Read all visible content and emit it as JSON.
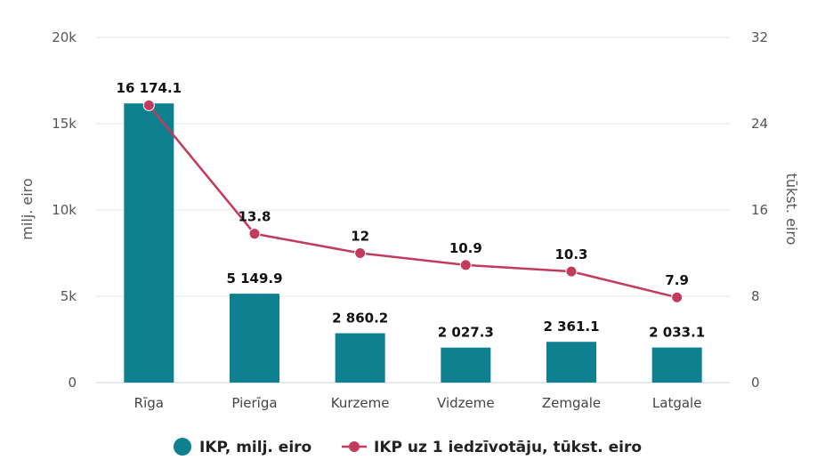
{
  "chart_data": {
    "type": "bar",
    "categories": [
      "Rīga",
      "Pierīga",
      "Kurzeme",
      "Vidzeme",
      "Zemgale",
      "Latgale"
    ],
    "series": [
      {
        "name": "IKP, milj. eiro",
        "type": "bar",
        "axis": "left",
        "color": "#0e8090",
        "values": [
          16174.1,
          5149.9,
          2860.2,
          2027.3,
          2361.1,
          2033.1
        ],
        "labels": [
          "16 174.1",
          "5 149.9",
          "2 860.2",
          "2 027.3",
          "2 361.1",
          "2 033.1"
        ]
      },
      {
        "name": "IKP uz 1 iedzīvotāju, tūkst. eiro",
        "type": "line",
        "axis": "right",
        "color": "#c23b5c",
        "values": [
          25.7,
          13.8,
          12,
          10.9,
          10.3,
          7.9
        ],
        "labels": [
          "",
          "13.8",
          "12",
          "10.9",
          "10.3",
          "7.9"
        ]
      }
    ],
    "y_left": {
      "label": "milj. eiro",
      "range": [
        0,
        20000
      ],
      "ticks": [
        0,
        5000,
        10000,
        15000,
        20000
      ],
      "tick_labels": [
        "0",
        "5k",
        "10k",
        "15k",
        "20k"
      ]
    },
    "y_right": {
      "label": "tūkst. eiro",
      "range": [
        0,
        32
      ],
      "ticks": [
        0,
        8,
        16,
        24,
        32
      ],
      "tick_labels": [
        "0",
        "8",
        "16",
        "24",
        "32"
      ]
    },
    "grid": true,
    "legend_position": "bottom-center"
  }
}
